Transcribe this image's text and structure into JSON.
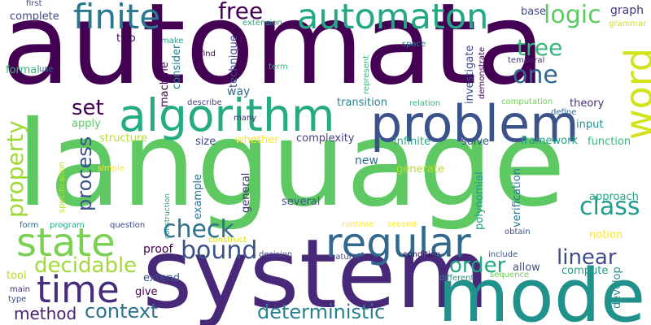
{
  "words": [
    {
      "text": "automata",
      "color": "#440154"
    },
    {
      "text": "language",
      "color": "#5ec962"
    },
    {
      "text": "system",
      "color": "#482878"
    },
    {
      "text": "model",
      "color": "#21918c"
    },
    {
      "text": "problem",
      "color": "#3b528b"
    },
    {
      "text": "algorithm",
      "color": "#25ab82"
    },
    {
      "text": "automaton",
      "color": "#22a884"
    },
    {
      "text": "finite",
      "color": "#2a788e"
    },
    {
      "text": "state",
      "color": "#7ad151"
    },
    {
      "text": "regular",
      "color": "#31688e"
    },
    {
      "text": "time",
      "color": "#472d7b"
    },
    {
      "text": "word",
      "color": "#d2e21b"
    },
    {
      "text": "free",
      "color": "#440154"
    },
    {
      "text": "logic",
      "color": "#5ec962"
    },
    {
      "text": "tree",
      "color": "#35b779"
    },
    {
      "text": "one",
      "color": "#31688e"
    },
    {
      "text": "set",
      "color": "#440154"
    },
    {
      "text": "property",
      "color": "#a0da39"
    },
    {
      "text": "class",
      "color": "#1f9e89"
    },
    {
      "text": "bound",
      "color": "#3b528b"
    },
    {
      "text": "check",
      "color": "#2c728e"
    },
    {
      "text": "decidable",
      "color": "#a0da39"
    },
    {
      "text": "order",
      "color": "#22a884"
    },
    {
      "text": "linear",
      "color": "#3e4a89"
    },
    {
      "text": "deterministic",
      "color": "#26828e"
    },
    {
      "text": "context",
      "color": "#2c728e"
    },
    {
      "text": "method",
      "color": "#481f70"
    },
    {
      "text": "process",
      "color": "#3b528b"
    },
    {
      "text": "graph",
      "color": "#46327e"
    },
    {
      "text": "complete",
      "color": "#3e4a89"
    },
    {
      "text": "first",
      "color": "#3b528b"
    },
    {
      "text": "two",
      "color": "#440154"
    },
    {
      "text": "formal",
      "color": "#35b779"
    },
    {
      "text": "use",
      "color": "#31688e"
    },
    {
      "text": "base",
      "color": "#3e4a89"
    },
    {
      "text": "grammar",
      "color": "#d2e21b"
    },
    {
      "text": "extension",
      "color": "#22a884"
    },
    {
      "text": "technique",
      "color": "#3e4a89"
    },
    {
      "text": "consider",
      "color": "#26828e"
    },
    {
      "text": "machine",
      "color": "#440154"
    },
    {
      "text": "make",
      "color": "#1f9e89"
    },
    {
      "text": "find",
      "color": "#440154"
    },
    {
      "text": "term",
      "color": "#35b779"
    },
    {
      "text": "space",
      "color": "#2a788e"
    },
    {
      "text": "represent",
      "color": "#35b779"
    },
    {
      "text": "investigate",
      "color": "#3e4a89"
    },
    {
      "text": "demonstrate",
      "color": "#440154"
    },
    {
      "text": "temporal",
      "color": "#472d7b"
    },
    {
      "text": "transition",
      "color": "#26828e"
    },
    {
      "text": "relation",
      "color": "#35b779"
    },
    {
      "text": "computation",
      "color": "#6ece58"
    },
    {
      "text": "theory",
      "color": "#472d7b"
    },
    {
      "text": "define",
      "color": "#31688e"
    },
    {
      "text": "describe",
      "color": "#433e85"
    },
    {
      "text": "many",
      "color": "#482878"
    },
    {
      "text": "way",
      "color": "#31688e"
    },
    {
      "text": "apply",
      "color": "#5ec962"
    },
    {
      "text": "input",
      "color": "#21918c"
    },
    {
      "text": "structure",
      "color": "#b5de2b"
    },
    {
      "text": "whether",
      "color": "#fde725"
    },
    {
      "text": "complexity",
      "color": "#433e85"
    },
    {
      "text": "solve",
      "color": "#3b528b"
    },
    {
      "text": "framework",
      "color": "#1f9e89"
    },
    {
      "text": "function",
      "color": "#35b779"
    },
    {
      "text": "size",
      "color": "#3e4a89"
    },
    {
      "text": "infinite",
      "color": "#25ab82"
    },
    {
      "text": "specification",
      "color": "#b5de2b"
    },
    {
      "text": "simple",
      "color": "#fde725"
    },
    {
      "text": "new",
      "color": "#2c728e"
    },
    {
      "text": "generate",
      "color": "#b5de2b"
    },
    {
      "text": "construction",
      "color": "#1f9e89"
    },
    {
      "text": "example",
      "color": "#2c728e"
    },
    {
      "text": "general",
      "color": "#472d7b"
    },
    {
      "text": "polynomial",
      "color": "#1f9e89"
    },
    {
      "text": "verification",
      "color": "#2a788e"
    },
    {
      "text": "approach",
      "color": "#22a884"
    },
    {
      "text": "several",
      "color": "#3b528b"
    },
    {
      "text": "form",
      "color": "#31688e"
    },
    {
      "text": "program",
      "color": "#22a884"
    },
    {
      "text": "question",
      "color": "#3e4a89"
    },
    {
      "text": "runtime",
      "color": "#fde725"
    },
    {
      "text": "second",
      "color": "#fde725"
    },
    {
      "text": "construct",
      "color": "#d2e21b"
    },
    {
      "text": "obtain",
      "color": "#3b528b"
    },
    {
      "text": "notion",
      "color": "#fde725"
    },
    {
      "text": "proof",
      "color": "#440154"
    },
    {
      "text": "tool",
      "color": "#b5de2b"
    },
    {
      "text": "decision",
      "color": "#3e4a89"
    },
    {
      "text": "condition",
      "color": "#440154"
    },
    {
      "text": "include",
      "color": "#3b528b"
    },
    {
      "text": "allow",
      "color": "#3b528b"
    },
    {
      "text": "compute",
      "color": "#1f9e89"
    },
    {
      "text": "develop",
      "color": "#21918c"
    },
    {
      "text": "extend",
      "color": "#3b528b"
    },
    {
      "text": "give",
      "color": "#440154"
    },
    {
      "text": "natural",
      "color": "#3e4a89"
    },
    {
      "text": "different",
      "color": "#21918c"
    },
    {
      "text": "sequence",
      "color": "#6ece58"
    },
    {
      "text": "main",
      "color": "#472d7b"
    },
    {
      "text": "type",
      "color": "#3e4a89"
    }
  ]
}
